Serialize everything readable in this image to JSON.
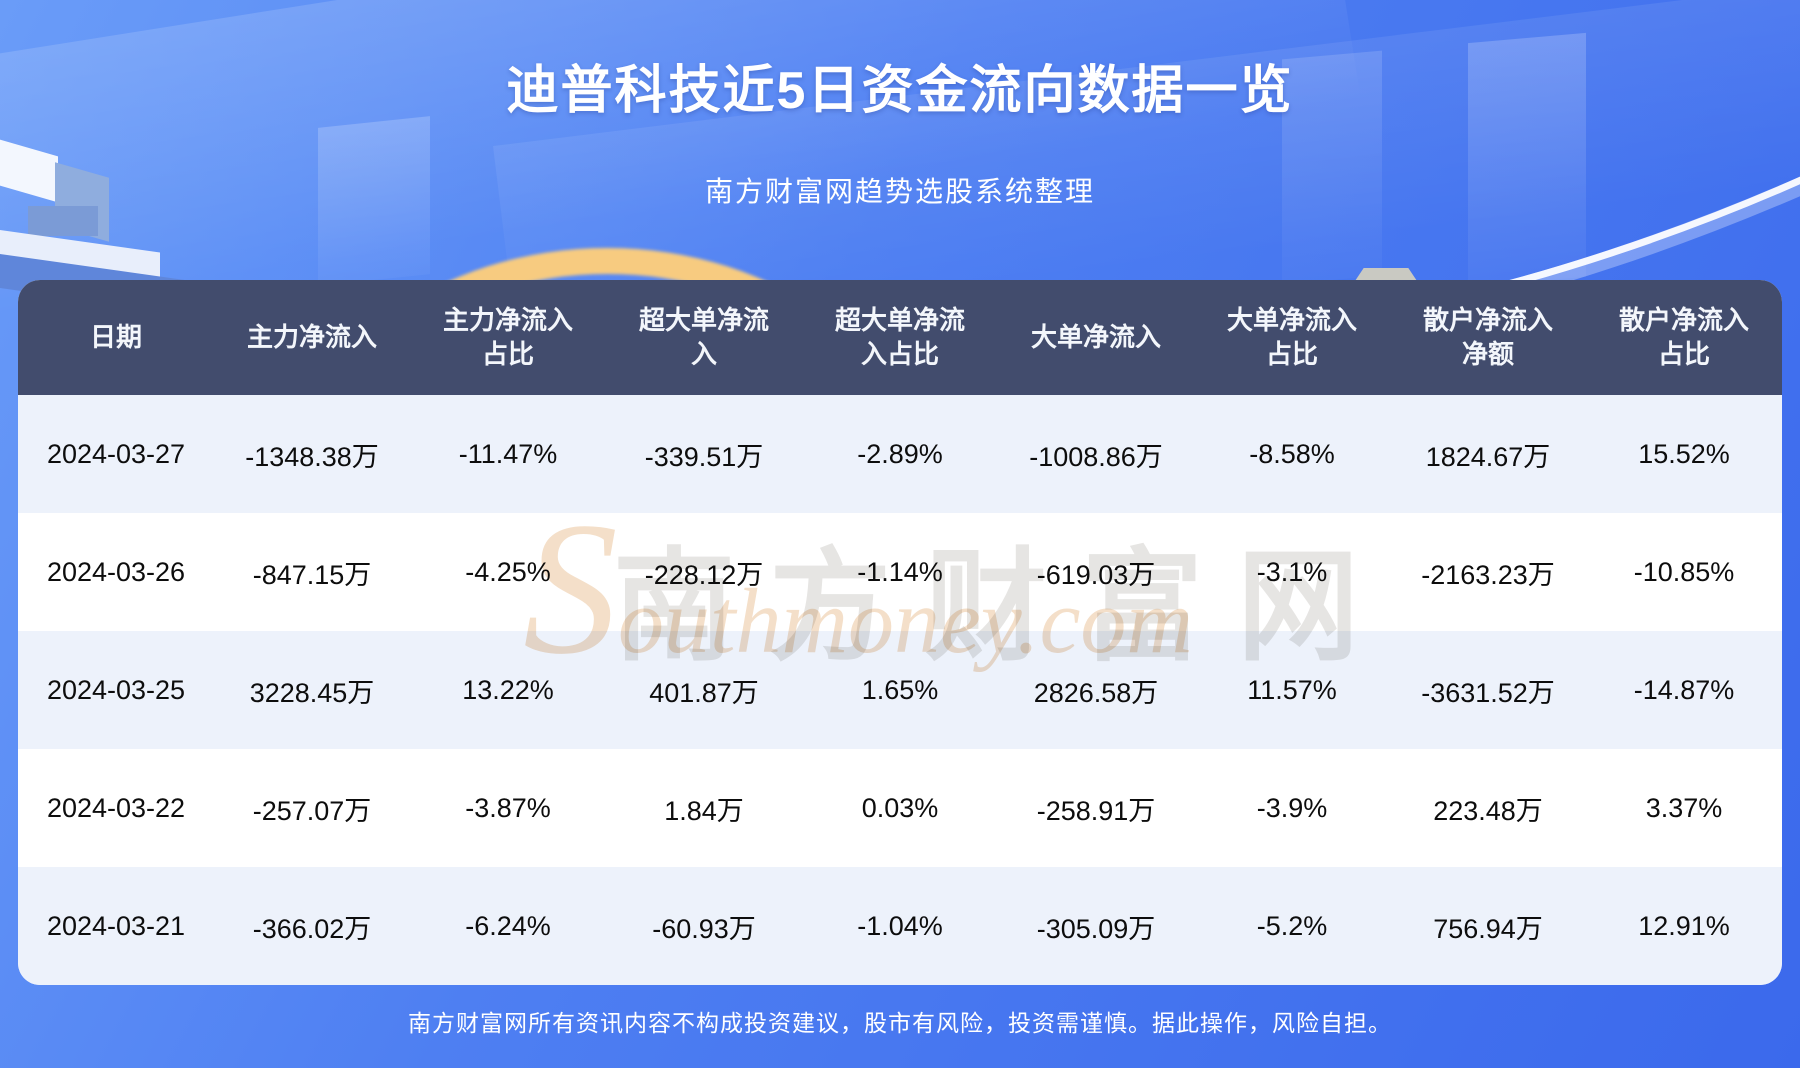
{
  "page": {
    "title": "迪普科技近5日资金流向数据一览",
    "subtitle": "南方财富网趋势选股系统整理",
    "disclaimer": "南方财富网所有资讯内容不构成投资建议，股市有风险，投资需谨慎。据此操作，风险自担。"
  },
  "watermark": {
    "cn": "南方财富网",
    "en": "Southmoney.com"
  },
  "colors": {
    "background_top": "#6a9cf8",
    "background_bottom": "#3b69ec",
    "header_bg": "#424c6d",
    "header_text": "#f3f6fb",
    "row_alt_bg": "#edf2fb",
    "row_bg": "#ffffff",
    "cell_text": "#0d0d0d",
    "accent_gold": "#f7cb80"
  },
  "chart_data": {
    "type": "table",
    "title": "迪普科技近5日资金流向数据一览",
    "subtitle": "南方财富网趋势选股系统整理",
    "columns": [
      "日期",
      "主力净流入",
      "主力净流入\n占比",
      "超大单净流\n入",
      "超大单净流\n入占比",
      "大单净流入",
      "大单净流入\n占比",
      "散户净流入\n净额",
      "散户净流入\n占比"
    ],
    "rows": [
      [
        "2024-03-27",
        "-1348.38万",
        "-11.47%",
        "-339.51万",
        "-2.89%",
        "-1008.86万",
        "-8.58%",
        "1824.67万",
        "15.52%"
      ],
      [
        "2024-03-26",
        "-847.15万",
        "-4.25%",
        "-228.12万",
        "-1.14%",
        "-619.03万",
        "-3.1%",
        "-2163.23万",
        "-10.85%"
      ],
      [
        "2024-03-25",
        "3228.45万",
        "13.22%",
        "401.87万",
        "1.65%",
        "2826.58万",
        "11.57%",
        "-3631.52万",
        "-14.87%"
      ],
      [
        "2024-03-22",
        "-257.07万",
        "-3.87%",
        "1.84万",
        "0.03%",
        "-258.91万",
        "-3.9%",
        "223.48万",
        "3.37%"
      ],
      [
        "2024-03-21",
        "-366.02万",
        "-6.24%",
        "-60.93万",
        "-1.04%",
        "-305.09万",
        "-5.2%",
        "756.94万",
        "12.91%"
      ]
    ]
  }
}
